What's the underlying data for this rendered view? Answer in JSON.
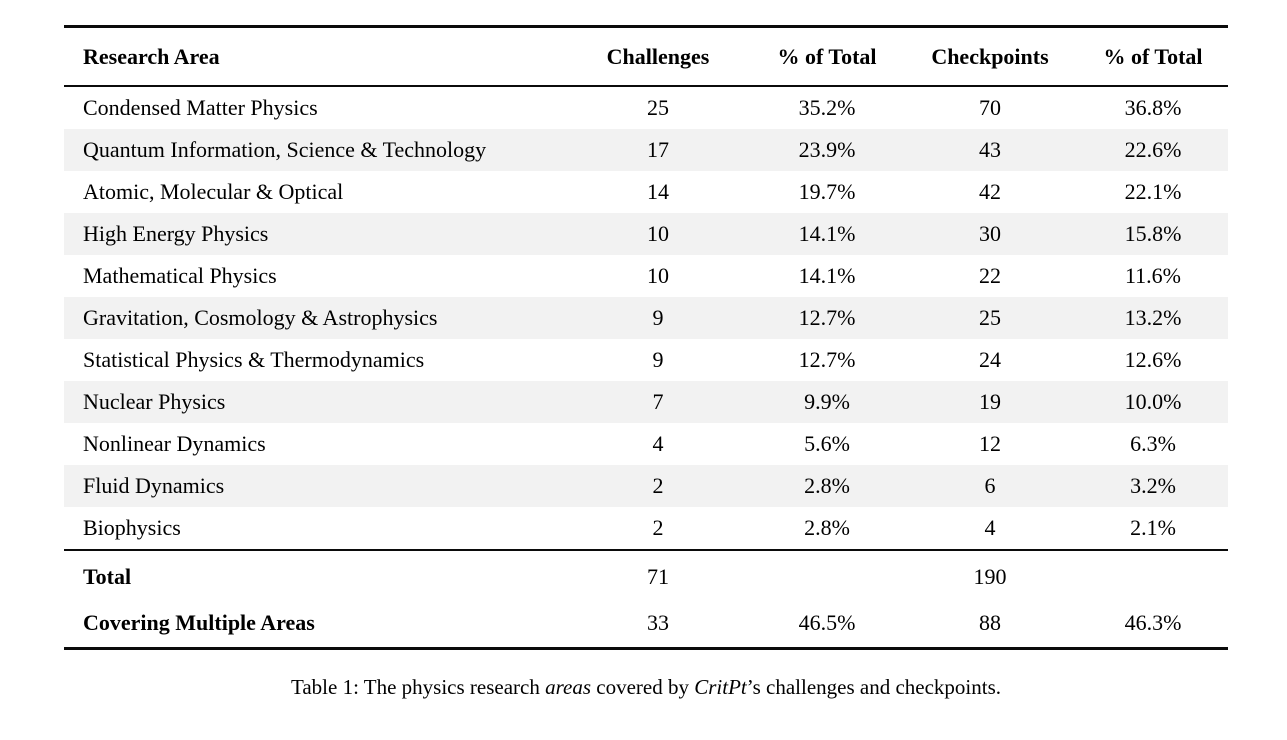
{
  "table": {
    "columns": [
      {
        "label": "Research Area"
      },
      {
        "label": "Challenges"
      },
      {
        "label": "% of Total"
      },
      {
        "label": "Checkpoints"
      },
      {
        "label": "% of Total"
      }
    ],
    "rows": [
      {
        "area": "Condensed Matter Physics",
        "challenges": "25",
        "challenges_pct": "35.2%",
        "checkpoints": "70",
        "checkpoints_pct": "36.8%"
      },
      {
        "area": "Quantum Information, Science & Technology",
        "challenges": "17",
        "challenges_pct": "23.9%",
        "checkpoints": "43",
        "checkpoints_pct": "22.6%"
      },
      {
        "area": "Atomic, Molecular & Optical",
        "challenges": "14",
        "challenges_pct": "19.7%",
        "checkpoints": "42",
        "checkpoints_pct": "22.1%"
      },
      {
        "area": "High Energy Physics",
        "challenges": "10",
        "challenges_pct": "14.1%",
        "checkpoints": "30",
        "checkpoints_pct": "15.8%"
      },
      {
        "area": "Mathematical Physics",
        "challenges": "10",
        "challenges_pct": "14.1%",
        "checkpoints": "22",
        "checkpoints_pct": "11.6%"
      },
      {
        "area": "Gravitation, Cosmology & Astrophysics",
        "challenges": "9",
        "challenges_pct": "12.7%",
        "checkpoints": "25",
        "checkpoints_pct": "13.2%"
      },
      {
        "area": "Statistical Physics & Thermodynamics",
        "challenges": "9",
        "challenges_pct": "12.7%",
        "checkpoints": "24",
        "checkpoints_pct": "12.6%"
      },
      {
        "area": "Nuclear Physics",
        "challenges": "7",
        "challenges_pct": "9.9%",
        "checkpoints": "19",
        "checkpoints_pct": "10.0%"
      },
      {
        "area": "Nonlinear Dynamics",
        "challenges": "4",
        "challenges_pct": "5.6%",
        "checkpoints": "12",
        "checkpoints_pct": "6.3%"
      },
      {
        "area": "Fluid Dynamics",
        "challenges": "2",
        "challenges_pct": "2.8%",
        "checkpoints": "6",
        "checkpoints_pct": "3.2%"
      },
      {
        "area": "Biophysics",
        "challenges": "2",
        "challenges_pct": "2.8%",
        "checkpoints": "4",
        "checkpoints_pct": "2.1%"
      }
    ],
    "footer_rows": [
      {
        "area": "Total",
        "challenges": "71",
        "challenges_pct": "",
        "checkpoints": "190",
        "checkpoints_pct": ""
      },
      {
        "area": "Covering Multiple Areas",
        "challenges": "33",
        "challenges_pct": "46.5%",
        "checkpoints": "88",
        "checkpoints_pct": "46.3%"
      }
    ]
  },
  "caption": {
    "segments": [
      {
        "text": "Table 1: The physics research ",
        "italic": false
      },
      {
        "text": "areas",
        "italic": true
      },
      {
        "text": " covered by ",
        "italic": false
      },
      {
        "text": "CritPt",
        "italic": true
      },
      {
        "text": "’s challenges and checkpoints.",
        "italic": false
      }
    ]
  },
  "colors": {
    "background": "#ffffff",
    "stripe": "#f2f2f2",
    "rule": "#0b0b0b",
    "text": "#000000"
  }
}
